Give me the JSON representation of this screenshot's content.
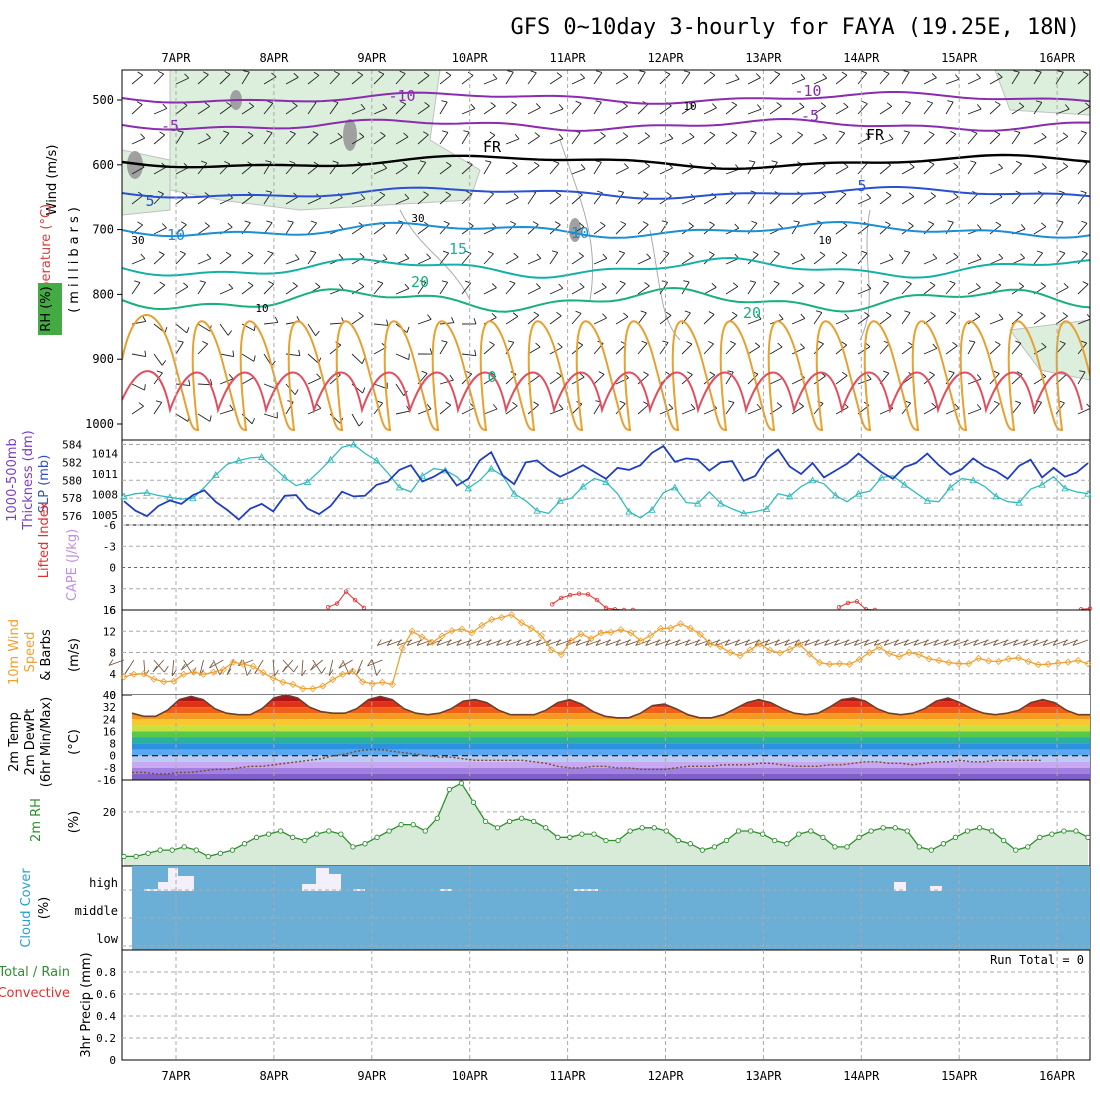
{
  "title": "GFS 0~10day 3-hourly for FAYA (19.25E, 18N)",
  "colors": {
    "frame": "#000000",
    "grid": "#999999",
    "cloud": "#6baed6",
    "thickness": "#33bbbb",
    "slp": "#1f3fbf",
    "wind_speed": "#f0a030",
    "rh": "#2f8f2f",
    "rh_fill": "#d8ead8",
    "lifted": "#e03030",
    "cape": "#c08ee0",
    "temp_line": "#6b3f2a"
  },
  "chart_data": [
    {
      "panel": "upper-air",
      "type": "line",
      "x": [
        "7APR",
        "8APR",
        "9APR",
        "10APR",
        "11APR",
        "12APR",
        "13APR",
        "14APR",
        "15APR",
        "16APR"
      ],
      "ylabel_wind": "Wind (m/s)",
      "ylabel_temp": "Temperature (°C)",
      "ylabel_rh": "RH (%)",
      "ylabel_p": "(millibars)",
      "yticks": [
        "500",
        "600",
        "700",
        "800",
        "900",
        "1000"
      ],
      "ylim": [
        1000,
        450
      ],
      "contour_labels": [
        "-10",
        "-10",
        "-5",
        "-5",
        "FR",
        "FR",
        "5",
        "5",
        "10",
        "10",
        "15",
        "20",
        "20",
        "0",
        "10",
        "10",
        "30",
        "30",
        "10"
      ]
    },
    {
      "panel": "thickness-slp",
      "type": "line",
      "ylabel_left": "1000-500mb Thickness (dm)",
      "ylabel_right": "SLP (mb)",
      "yticks_left": [
        "576",
        "578",
        "580",
        "582",
        "584"
      ],
      "yticks_right": [
        "1005",
        "1008",
        "1011",
        "1014"
      ],
      "series": [
        {
          "name": "Thickness (dm)",
          "ylim": [
            575,
            584.5
          ],
          "values": [
            578.2,
            578.5,
            578.6,
            578.3,
            578.1,
            577.9,
            578.0,
            579.2,
            580.6,
            581.8,
            582.2,
            582.5,
            582.6,
            581.5,
            580.3,
            579.4,
            579.8,
            581.0,
            582.3,
            583.7,
            584.0,
            583.0,
            582.2,
            580.8,
            579.2,
            578.7,
            580.5,
            581.3,
            581.1,
            580.4,
            579.1,
            580.0,
            581.3,
            580.5,
            578.5,
            577.7,
            576.6,
            576.3,
            577.7,
            578.0,
            579.3,
            580.2,
            579.8,
            578.5,
            576.5,
            575.8,
            576.7,
            578.6,
            579.2,
            577.5,
            577.4,
            578.7,
            577.4,
            576.8,
            576.3,
            576.5,
            576.8,
            578.5,
            578.2,
            579.3,
            580.0,
            579.6,
            578.3,
            577.6,
            578.5,
            578.8,
            580.3,
            580.5,
            579.5,
            578.6,
            577.7,
            577.6,
            579.2,
            580.2,
            580.0,
            579.3,
            578.2,
            577.6,
            577.5,
            579.0,
            579.5,
            580.4,
            579.1,
            578.7,
            578.5
          ]
        },
        {
          "name": "SLP (mb)",
          "ylim": [
            1003.5,
            1016
          ],
          "values": [
            1007.0,
            1005.6,
            1004.8,
            1006.3,
            1007.1,
            1006.6,
            1007.9,
            1008.6,
            1006.9,
            1005.7,
            1004.3,
            1005.9,
            1006.6,
            1005.5,
            1007.8,
            1007.9,
            1005.9,
            1005.1,
            1006.3,
            1008.4,
            1007.7,
            1007.8,
            1009.4,
            1009.9,
            1011.6,
            1012.3,
            1009.9,
            1010.6,
            1011.6,
            1009.3,
            1010.3,
            1013.0,
            1014.2,
            1010.8,
            1009.5,
            1012.7,
            1013.0,
            1011.6,
            1010.6,
            1011.4,
            1012.3,
            1011.3,
            1010.3,
            1011.9,
            1011.6,
            1012.3,
            1014.1,
            1015.1,
            1012.8,
            1013.3,
            1013.1,
            1011.5,
            1012.7,
            1012.9,
            1010.0,
            1010.7,
            1013.3,
            1014.6,
            1012.1,
            1011.0,
            1012.6,
            1010.5,
            1011.5,
            1012.5,
            1014.0,
            1012.6,
            1011.3,
            1010.3,
            1012.0,
            1012.6,
            1014.0,
            1012.3,
            1010.9,
            1011.7,
            1013.3,
            1012.1,
            1011.4,
            1010.3,
            1012.2,
            1013.1,
            1010.5,
            1011.9,
            1010.6,
            1011.2,
            1012.6
          ]
        }
      ]
    },
    {
      "panel": "lifted-cape",
      "type": "line",
      "ylabel_left": "Lifted Index",
      "ylabel_right": "CAPE (J/kg)",
      "yticks": [
        "-6",
        "-3",
        "0",
        "3",
        "6"
      ],
      "ylim": [
        -6,
        6
      ],
      "series": [
        {
          "name": "Lifted Index",
          "x_idx": [
            23,
            24,
            25,
            26,
            27,
            48,
            49,
            50,
            51,
            52,
            53,
            54,
            55,
            56,
            57,
            80,
            81,
            82,
            83,
            84,
            107,
            108
          ],
          "values": [
            5.6,
            5.1,
            3.4,
            4.6,
            5.7,
            5.2,
            4.3,
            3.9,
            3.7,
            3.8,
            4.6,
            5.7,
            5.9,
            6.0,
            6.0,
            5.6,
            5.0,
            4.8,
            5.9,
            6.0,
            5.9,
            5.8
          ]
        }
      ]
    },
    {
      "panel": "wind-10m",
      "type": "line",
      "ylabel": "10m Wind Speed & Barbs (m/s)",
      "yticks": [
        "0",
        "4",
        "8",
        "12",
        "16"
      ],
      "ylim": [
        0,
        16
      ],
      "series": [
        {
          "name": "10m Wind Speed",
          "values": [
            3.4,
            3.9,
            4.0,
            3.0,
            2.5,
            2.6,
            3.9,
            4.3,
            3.9,
            4.3,
            4.8,
            6.2,
            5.8,
            5.4,
            4.2,
            3.2,
            2.4,
            2.0,
            1.2,
            1.2,
            1.7,
            2.9,
            3.9,
            4.5,
            2.5,
            2.1,
            2.4,
            2.0,
            8.8,
            12.0,
            10.9,
            9.9,
            11.1,
            12.1,
            12.4,
            11.7,
            13.1,
            14.2,
            14.6,
            15.1,
            13.6,
            12.6,
            11.2,
            8.5,
            7.6,
            10.2,
            11.5,
            10.6,
            11.7,
            11.8,
            12.3,
            11.7,
            10.2,
            11.2,
            12.5,
            12.6,
            13.4,
            12.6,
            11.4,
            9.6,
            9.1,
            8.0,
            7.4,
            8.5,
            9.6,
            8.4,
            7.9,
            8.6,
            9.5,
            7.7,
            6.1,
            5.8,
            5.9,
            5.8,
            6.7,
            8.0,
            9.0,
            7.8,
            7.2,
            8.0,
            7.6,
            6.8,
            6.5,
            6.1,
            5.9,
            5.9,
            6.9,
            6.4,
            6.3,
            6.8,
            7.0,
            6.3,
            5.7,
            5.8,
            6.0,
            6.2,
            6.5,
            5.9
          ]
        }
      ]
    },
    {
      "panel": "temperature-2m",
      "type": "area",
      "ylabel": "2m Temp 2m DewPt (6hr Min/Max) (°C)",
      "yticks": [
        "40",
        "32",
        "24",
        "16",
        "8",
        "0",
        "-8",
        "-16"
      ],
      "ylim": [
        -16,
        40
      ],
      "series": [
        {
          "name": "2m Temp",
          "values": [
            28,
            26,
            26,
            30,
            37,
            39,
            37,
            31,
            28,
            27,
            27,
            31,
            38,
            40,
            38,
            32,
            29,
            28,
            28,
            31,
            37,
            39,
            37,
            31,
            28,
            27,
            28,
            31,
            36,
            37,
            35,
            30,
            27,
            27,
            27,
            30,
            35,
            37,
            34,
            29,
            26,
            25,
            25,
            28,
            33,
            34,
            31,
            27,
            25,
            25,
            27,
            31,
            35,
            37,
            35,
            31,
            28,
            27,
            28,
            32,
            37,
            38,
            36,
            31,
            28,
            27,
            28,
            31,
            36,
            38,
            35,
            31,
            28,
            27,
            28,
            30,
            35,
            37,
            35,
            30,
            27,
            27
          ]
        },
        {
          "name": "2m DewPt",
          "values": [
            -11,
            -11,
            -12,
            -12,
            -11,
            -11,
            -10,
            -9,
            -9,
            -8,
            -7,
            -7,
            -6,
            -5,
            -4,
            -3,
            -2,
            0,
            1,
            3,
            4,
            4,
            3,
            2,
            1,
            0,
            -1,
            -1,
            -2,
            -3,
            -3,
            -3,
            -3,
            -3,
            -4,
            -5,
            -7,
            -8,
            -8,
            -7,
            -7,
            -8,
            -8,
            -9,
            -9,
            -9,
            -8,
            -7,
            -7,
            -7,
            -6,
            -6,
            -6,
            -5,
            -5,
            -6,
            -7,
            -7,
            -7,
            -6,
            -6,
            -5,
            -4,
            -4,
            -5,
            -5,
            -6,
            -5,
            -4,
            -4,
            -3,
            -4,
            -4,
            -3,
            -3,
            -3,
            -3,
            -3
          ]
        }
      ]
    },
    {
      "panel": "rh-2m",
      "type": "area",
      "ylabel": "2m RH (%)",
      "yticks": [
        "20"
      ],
      "ylim": [
        3,
        30
      ],
      "series": [
        {
          "name": "2m RH",
          "values": [
            6,
            6,
            7,
            8,
            8,
            9,
            8,
            6,
            7,
            8,
            10,
            12,
            13,
            14,
            12,
            11,
            13,
            14,
            13,
            9,
            10,
            12,
            14,
            16,
            16,
            14,
            18,
            27,
            29,
            23,
            17,
            15,
            17,
            18,
            17,
            15,
            12,
            12,
            13,
            13,
            11,
            11,
            14,
            15,
            15,
            14,
            11,
            10,
            8,
            9,
            11,
            14,
            14,
            13,
            11,
            10,
            13,
            14,
            12,
            9,
            9,
            12,
            14,
            15,
            15,
            14,
            9,
            8,
            10,
            12,
            14,
            15,
            14,
            11,
            8,
            9,
            12,
            13,
            14,
            14,
            12
          ]
        }
      ]
    },
    {
      "panel": "cloud-cover",
      "type": "bar",
      "ylabel": "Cloud Cover (%)",
      "yticks": [
        "high",
        "middle",
        "low"
      ]
    },
    {
      "panel": "precip",
      "type": "bar",
      "ylabel_left": "Total / Rain",
      "ylabel_conv": "Convective",
      "ylabel": "3hr Precip (mm)",
      "yticks": [
        "0",
        "0.2",
        "0.4",
        "0.6",
        "0.8"
      ],
      "ylim": [
        0,
        1.0
      ],
      "note": "Run Total = 0"
    }
  ]
}
